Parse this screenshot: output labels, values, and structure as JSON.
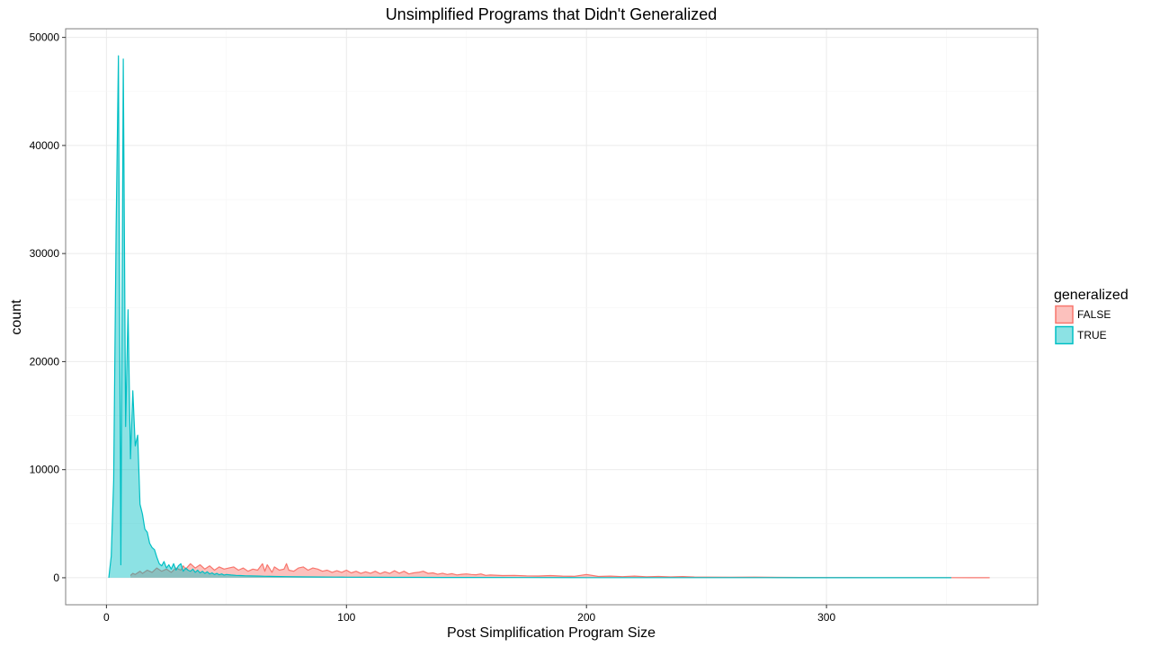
{
  "chart_data": {
    "type": "area",
    "title": "Unsimplified Programs that Didn't Generalized",
    "xlabel": "Post Simplification Program Size",
    "ylabel": "count",
    "xlim": [
      -17,
      388
    ],
    "ylim": [
      -2500,
      50800
    ],
    "x_ticks": [
      0,
      100,
      200,
      300
    ],
    "y_ticks": [
      0,
      10000,
      20000,
      30000,
      40000,
      50000
    ],
    "grid": true,
    "legend": {
      "title": "generalized",
      "position": "right",
      "entries": [
        "FALSE",
        "TRUE"
      ]
    },
    "series": [
      {
        "name": "FALSE",
        "color": "#F8766D",
        "fill": "#F8766D",
        "x": [
          10,
          11,
          12,
          14,
          15,
          17,
          19,
          21,
          23,
          25,
          27,
          29,
          31,
          32,
          33,
          35,
          37,
          39,
          41,
          43,
          45,
          47,
          49,
          51,
          53,
          55,
          57,
          59,
          61,
          63,
          65,
          66,
          67,
          69,
          70,
          72,
          74,
          75,
          76,
          78,
          80,
          82,
          84,
          86,
          88,
          90,
          92,
          94,
          96,
          98,
          100,
          102,
          104,
          106,
          108,
          110,
          112,
          114,
          116,
          118,
          120,
          122,
          124,
          126,
          128,
          130,
          132,
          134,
          136,
          138,
          140,
          142,
          144,
          146,
          148,
          150,
          152,
          154,
          156,
          158,
          160,
          165,
          170,
          175,
          180,
          185,
          190,
          195,
          200,
          205,
          210,
          215,
          220,
          225,
          230,
          235,
          240,
          245,
          250,
          260,
          270,
          280,
          290,
          300,
          310,
          320,
          330,
          340,
          350,
          360,
          368
        ],
        "y": [
          200,
          400,
          300,
          600,
          400,
          700,
          500,
          900,
          600,
          800,
          500,
          900,
          700,
          1100,
          800,
          1300,
          900,
          1200,
          800,
          1100,
          700,
          1000,
          800,
          900,
          1000,
          700,
          900,
          600,
          800,
          700,
          1300,
          600,
          1200,
          500,
          1000,
          700,
          800,
          1300,
          700,
          600,
          900,
          1000,
          700,
          900,
          800,
          600,
          700,
          500,
          650,
          500,
          700,
          450,
          600,
          400,
          550,
          420,
          600,
          380,
          550,
          400,
          650,
          420,
          600,
          350,
          450,
          500,
          600,
          400,
          450,
          320,
          420,
          300,
          380,
          260,
          320,
          350,
          300,
          280,
          350,
          220,
          250,
          200,
          220,
          180,
          160,
          200,
          150,
          140,
          300,
          120,
          150,
          100,
          150,
          90,
          120,
          80,
          110,
          70,
          60,
          50,
          60,
          40,
          30,
          20,
          20,
          15,
          12,
          10,
          8,
          5,
          0
        ]
      },
      {
        "name": "TRUE",
        "color": "#00BFC4",
        "fill": "#00BFC4",
        "x": [
          1,
          2,
          3,
          4,
          5,
          6,
          7,
          8,
          9,
          10,
          11,
          12,
          13,
          14,
          15,
          16,
          17,
          18,
          19,
          20,
          21,
          22,
          23,
          24,
          25,
          26,
          27,
          28,
          29,
          30,
          31,
          32,
          33,
          34,
          35,
          36,
          37,
          38,
          39,
          40,
          41,
          42,
          43,
          44,
          45,
          46,
          47,
          48,
          49,
          50,
          52,
          54,
          56,
          58,
          60,
          62,
          64,
          66,
          68,
          70,
          75,
          80,
          85,
          90,
          95,
          100,
          110,
          120,
          130,
          140,
          150,
          175,
          200,
          225,
          250,
          275,
          300,
          325,
          352
        ],
        "y": [
          0,
          2000,
          9000,
          32000,
          48300,
          1200,
          48000,
          14000,
          24800,
          11000,
          17300,
          12200,
          13200,
          6800,
          5900,
          4500,
          4200,
          3200,
          2800,
          2600,
          1900,
          1300,
          1100,
          1500,
          900,
          1200,
          800,
          1300,
          700,
          1100,
          1300,
          600,
          900,
          700,
          600,
          800,
          500,
          700,
          450,
          600,
          400,
          550,
          350,
          450,
          300,
          400,
          280,
          350,
          250,
          300,
          250,
          220,
          200,
          180,
          170,
          160,
          150,
          140,
          130,
          120,
          100,
          90,
          80,
          70,
          60,
          50,
          45,
          40,
          35,
          30,
          25,
          20,
          15,
          12,
          10,
          8,
          5,
          3,
          0
        ]
      }
    ]
  }
}
